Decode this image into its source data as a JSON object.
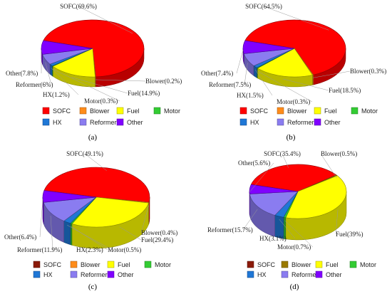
{
  "chart_data": [
    {
      "type": "pie",
      "subtitle": "(a)",
      "colors": {
        "SOFC": "#ff0000",
        "Blower": "#ff8c1a",
        "Fuel": "#ffff00",
        "Motor": "#33cc33",
        "HX": "#1f77d6",
        "Reformer": "#8a7cf0",
        "Other": "#8000ff"
      },
      "legend": [
        "SOFC",
        "Blower",
        "Fuel",
        "Motor",
        "HX",
        "Reformer",
        "Other"
      ],
      "slices": [
        {
          "name": "SOFC",
          "value": 69.6,
          "label": "SOFC(69.6%)"
        },
        {
          "name": "Blower",
          "value": 0.2,
          "label": "Blower(0.2%)"
        },
        {
          "name": "Fuel",
          "value": 14.9,
          "label": "Fuel(14.9%)"
        },
        {
          "name": "Motor",
          "value": 0.3,
          "label": "Motor(0.3%)"
        },
        {
          "name": "HX",
          "value": 1.2,
          "label": "HX(1.2%)"
        },
        {
          "name": "Reformer",
          "value": 6,
          "label": "Reformer(6%)"
        },
        {
          "name": "Other",
          "value": 7.8,
          "label": "Other(7.8%)"
        }
      ]
    },
    {
      "type": "pie",
      "subtitle": "(b)",
      "colors": {
        "SOFC": "#ff0000",
        "Blower": "#ff8c1a",
        "Fuel": "#ffff00",
        "Motor": "#33cc33",
        "HX": "#1f77d6",
        "Reformer": "#8a7cf0",
        "Other": "#8000ff"
      },
      "legend": [
        "SOFC",
        "Blower",
        "Fuel",
        "Motor",
        "HX",
        "Reformer",
        "Other"
      ],
      "slices": [
        {
          "name": "SOFC",
          "value": 64.5,
          "label": "SOFC(64.5%)"
        },
        {
          "name": "Blower",
          "value": 0.3,
          "label": "Blower(0.3%)"
        },
        {
          "name": "Fuel",
          "value": 18.5,
          "label": "Fuel(18.5%)"
        },
        {
          "name": "Motor",
          "value": 0.3,
          "label": "Motor(0.3%)"
        },
        {
          "name": "HX",
          "value": 1.5,
          "label": "HX(1.5%)"
        },
        {
          "name": "Reformer",
          "value": 7.5,
          "label": "Reformer(7.5%)"
        },
        {
          "name": "Other",
          "value": 7.4,
          "label": "Other(7.4%)"
        }
      ]
    },
    {
      "type": "pie",
      "subtitle": "(c)",
      "colors": {
        "SOFC": "#ff0000",
        "Blower": "#ff8c1a",
        "Fuel": "#ffff00",
        "Motor": "#33cc33",
        "HX": "#1f77d6",
        "Reformer": "#8a7cf0",
        "Other": "#8000ff"
      },
      "legend_colors": {
        "SOFC": "#8b1a0a",
        "Blower": "#ff8c1a",
        "Fuel": "#ffff00",
        "Motor": "#33cc33",
        "HX": "#1f77d6",
        "Reformer": "#8a7cf0",
        "Other": "#8000ff"
      },
      "legend": [
        "SOFC",
        "Blower",
        "Fuel",
        "Motor",
        "HX",
        "Reformer",
        "Other"
      ],
      "slices": [
        {
          "name": "SOFC",
          "value": 49.1,
          "label": "SOFC(49.1%)"
        },
        {
          "name": "Blower",
          "value": 0.4,
          "label": "Blower(0.4%)"
        },
        {
          "name": "Fuel",
          "value": 29.4,
          "label": "Fuel(29.4%)"
        },
        {
          "name": "Motor",
          "value": 0.5,
          "label": "Motor(0.5%)"
        },
        {
          "name": "HX",
          "value": 2.3,
          "label": "HX(2.3%)"
        },
        {
          "name": "Reformer",
          "value": 11.9,
          "label": "Reformer(11.9%)"
        },
        {
          "name": "Other",
          "value": 6.4,
          "label": "Other(6.4%)"
        }
      ]
    },
    {
      "type": "pie",
      "subtitle": "(d)",
      "colors": {
        "SOFC": "#ff0000",
        "Blower": "#9a7a00",
        "Fuel": "#ffff00",
        "Motor": "#33cc33",
        "HX": "#1f77d6",
        "Reformer": "#8a7cf0",
        "Other": "#8000ff"
      },
      "legend_colors": {
        "SOFC": "#8b1a0a",
        "Blower": "#9a7a00",
        "Fuel": "#ffff00",
        "Motor": "#33cc33",
        "HX": "#1f77d6",
        "Reformer": "#8a7cf0",
        "Other": "#8000ff"
      },
      "legend": [
        "SOFC",
        "Blower",
        "Fuel",
        "Motor",
        "HX",
        "Reformer",
        "Other"
      ],
      "slices": [
        {
          "name": "SOFC",
          "value": 35.4,
          "label": "SOFC(35.4%)"
        },
        {
          "name": "Blower",
          "value": 0.5,
          "label": "Blower(0.5%)"
        },
        {
          "name": "Fuel",
          "value": 39,
          "label": "Fuel(39%)"
        },
        {
          "name": "Motor",
          "value": 0.7,
          "label": "Motor(0.7%)"
        },
        {
          "name": "HX",
          "value": 3.1,
          "label": "HX(3.1%)"
        },
        {
          "name": "Reformer",
          "value": 15.7,
          "label": "Reformer(15.7%)"
        },
        {
          "name": "Other",
          "value": 5.6,
          "label": "Other(5.6%)"
        }
      ]
    }
  ]
}
